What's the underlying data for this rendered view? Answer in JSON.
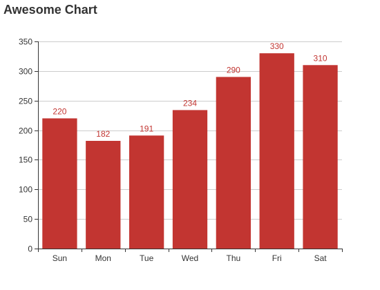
{
  "chart_data": {
    "type": "bar",
    "title": "Awesome Chart",
    "categories": [
      "Sun",
      "Mon",
      "Tue",
      "Wed",
      "Thu",
      "Fri",
      "Sat"
    ],
    "values": [
      220,
      182,
      191,
      234,
      290,
      330,
      310
    ],
    "ylim": [
      0,
      350
    ],
    "yticks": [
      0,
      50,
      100,
      150,
      200,
      250,
      300,
      350
    ],
    "xlabel": "",
    "ylabel": "",
    "grid": true,
    "show_data_labels": true,
    "colors": {
      "bar": "#c23531",
      "label": "#c23531",
      "grid": "#cccccc",
      "axis": "#333333"
    }
  }
}
